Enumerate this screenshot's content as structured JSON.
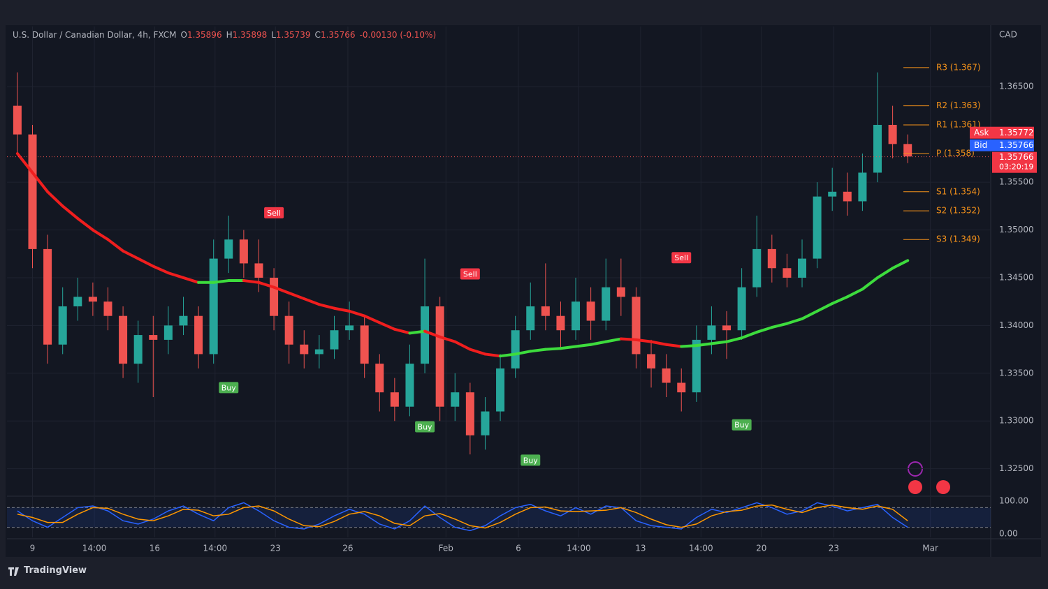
{
  "chart_data": {
    "type": "candlestick",
    "header": {
      "symbol": "U.S. Dollar / Canadian Dollar, 4h, FXCM",
      "ohlc": [
        {
          "key": "O",
          "value": 1.35896
        },
        {
          "key": "H",
          "value": 1.35898
        },
        {
          "key": "L",
          "value": 1.35739
        },
        {
          "key": "C",
          "value": 1.35766
        }
      ],
      "change": "-0.00130 (-0.10%)"
    },
    "currency": "CAD",
    "xlim": [
      -0.69,
      64.5
    ],
    "xticks": [
      {
        "value": 1.0,
        "label": "9"
      },
      {
        "value": 5.1,
        "label": "14:00"
      },
      {
        "value": 9.1,
        "label": "16"
      },
      {
        "value": 13.1,
        "label": "14:00"
      },
      {
        "value": 17.1,
        "label": "23"
      },
      {
        "value": 21.9,
        "label": "26"
      },
      {
        "value": 28.4,
        "label": "Feb"
      },
      {
        "value": 33.2,
        "label": "6"
      },
      {
        "value": 37.2,
        "label": "14:00"
      },
      {
        "value": 41.3,
        "label": "13"
      },
      {
        "value": 45.3,
        "label": "14:00"
      },
      {
        "value": 49.3,
        "label": "20"
      },
      {
        "value": 54.1,
        "label": "23"
      },
      {
        "value": 60.5,
        "label": "Mar"
      }
    ],
    "ylim": [
      1.3222,
      1.3713
    ],
    "yticks": [
      {
        "value": 1.325,
        "label": "1.32500"
      },
      {
        "value": 1.33,
        "label": "1.33000"
      },
      {
        "value": 1.335,
        "label": "1.33500"
      },
      {
        "value": 1.34,
        "label": "1.34000"
      },
      {
        "value": 1.345,
        "label": "1.34500"
      },
      {
        "value": 1.35,
        "label": "1.35000"
      },
      {
        "value": 1.355,
        "label": "1.35500"
      },
      {
        "value": 1.365,
        "label": "1.36500"
      }
    ],
    "grid": true,
    "up_color": "#26a69a",
    "down_color": "#ef5350",
    "open": [
      1.363,
      1.36,
      1.348,
      1.338,
      1.342,
      1.343,
      1.3425,
      1.341,
      1.336,
      1.339,
      1.3385,
      1.34,
      1.341,
      1.337,
      1.347,
      1.349,
      1.3465,
      1.345,
      1.341,
      1.338,
      1.337,
      1.3375,
      1.3395,
      1.34,
      1.336,
      1.333,
      1.3315,
      1.336,
      1.342,
      1.3315,
      1.333,
      1.3285,
      1.331,
      1.3355,
      1.3395,
      1.342,
      1.341,
      1.3395,
      1.3425,
      1.3405,
      1.344,
      1.343,
      1.337,
      1.3355,
      1.334,
      1.333,
      1.3385,
      1.34,
      1.3395,
      1.344,
      1.348,
      1.346,
      1.345,
      1.347,
      1.3535,
      1.354,
      1.353,
      1.356,
      1.361,
      1.359
    ],
    "high": [
      1.3665,
      1.361,
      1.3495,
      1.344,
      1.345,
      1.3445,
      1.344,
      1.342,
      1.3405,
      1.341,
      1.342,
      1.343,
      1.342,
      1.349,
      1.3515,
      1.35,
      1.349,
      1.346,
      1.3425,
      1.3395,
      1.339,
      1.341,
      1.3425,
      1.341,
      1.337,
      1.3345,
      1.338,
      1.347,
      1.343,
      1.335,
      1.334,
      1.3325,
      1.337,
      1.341,
      1.3445,
      1.3465,
      1.3425,
      1.345,
      1.344,
      1.347,
      1.347,
      1.344,
      1.3385,
      1.337,
      1.3355,
      1.34,
      1.342,
      1.3415,
      1.346,
      1.3515,
      1.3495,
      1.3475,
      1.349,
      1.355,
      1.3565,
      1.356,
      1.358,
      1.3665,
      1.363,
      1.36
    ],
    "low": [
      1.358,
      1.346,
      1.336,
      1.337,
      1.3405,
      1.341,
      1.3395,
      1.3345,
      1.334,
      1.3325,
      1.337,
      1.339,
      1.3355,
      1.336,
      1.3455,
      1.345,
      1.3435,
      1.3395,
      1.336,
      1.3355,
      1.3355,
      1.3365,
      1.3385,
      1.3345,
      1.331,
      1.33,
      1.3305,
      1.335,
      1.33,
      1.33,
      1.3265,
      1.327,
      1.33,
      1.3345,
      1.3385,
      1.3395,
      1.3375,
      1.3385,
      1.3385,
      1.3395,
      1.341,
      1.3355,
      1.3335,
      1.3325,
      1.331,
      1.332,
      1.337,
      1.3365,
      1.3385,
      1.343,
      1.3445,
      1.344,
      1.344,
      1.346,
      1.352,
      1.3515,
      1.352,
      1.355,
      1.3575,
      1.357
    ],
    "close": [
      1.36,
      1.348,
      1.338,
      1.342,
      1.343,
      1.3425,
      1.341,
      1.336,
      1.339,
      1.3385,
      1.34,
      1.341,
      1.337,
      1.347,
      1.349,
      1.3465,
      1.345,
      1.341,
      1.338,
      1.337,
      1.3375,
      1.3395,
      1.34,
      1.336,
      1.333,
      1.3315,
      1.336,
      1.342,
      1.3315,
      1.333,
      1.3285,
      1.331,
      1.3355,
      1.3395,
      1.342,
      1.341,
      1.3395,
      1.3425,
      1.3405,
      1.344,
      1.343,
      1.337,
      1.3355,
      1.334,
      1.333,
      1.3385,
      1.34,
      1.3395,
      1.344,
      1.348,
      1.346,
      1.345,
      1.347,
      1.3535,
      1.354,
      1.353,
      1.356,
      1.361,
      1.359,
      1.3577
    ],
    "moving_average": {
      "values": [
        1.358,
        1.356,
        1.354,
        1.3525,
        1.3512,
        1.35,
        1.349,
        1.3478,
        1.347,
        1.3462,
        1.3455,
        1.345,
        1.3445,
        1.3445,
        1.3447,
        1.3447,
        1.3445,
        1.344,
        1.3434,
        1.3428,
        1.3422,
        1.3418,
        1.3415,
        1.341,
        1.3403,
        1.3396,
        1.3392,
        1.3394,
        1.3388,
        1.3383,
        1.3375,
        1.337,
        1.3368,
        1.337,
        1.3373,
        1.3375,
        1.3376,
        1.3378,
        1.338,
        1.3383,
        1.3386,
        1.3385,
        1.3383,
        1.338,
        1.3378,
        1.3379,
        1.3381,
        1.3383,
        1.3387,
        1.3393,
        1.3398,
        1.3402,
        1.3407,
        1.3415,
        1.3423,
        1.343,
        1.3438,
        1.345,
        1.346,
        1.3468
      ],
      "up_color": "#3ddc3d",
      "down_color": "#f01e1e"
    },
    "signals": [
      {
        "index": 14,
        "label": "Buy",
        "price": 1.3335
      },
      {
        "index": 17,
        "label": "Sell",
        "price": 1.3518
      },
      {
        "index": 27,
        "label": "Buy",
        "price": 1.3294
      },
      {
        "index": 30,
        "label": "Sell",
        "price": 1.3454
      },
      {
        "index": 34,
        "label": "Buy",
        "price": 1.3259
      },
      {
        "index": 44,
        "label": "Sell",
        "price": 1.3471
      },
      {
        "index": 48,
        "label": "Buy",
        "price": 1.3296
      }
    ],
    "buy_color": "#4caf50",
    "sell_color": "#f23645",
    "pivot_color": "#f7931a",
    "pivots": [
      {
        "label": "R3 (1.367)",
        "value": 1.367
      },
      {
        "label": "R2 (1.363)",
        "value": 1.363
      },
      {
        "label": "R1 (1.361)",
        "value": 1.361
      },
      {
        "label": "P (1.358)",
        "value": 1.358
      },
      {
        "label": "S1 (1.354)",
        "value": 1.354
      },
      {
        "label": "S2 (1.352)",
        "value": 1.352
      },
      {
        "label": "S3 (1.349)",
        "value": 1.349
      }
    ],
    "last_price": 1.35766,
    "price_tags": {
      "ask_label": "Ask",
      "ask": 1.35772,
      "bid_label": "Bid",
      "bid": 1.35766,
      "last": 1.35766,
      "countdown": "03:20:19"
    },
    "oscillator": {
      "ylim": [
        -10.6,
        112.8
      ],
      "yticks": [
        {
          "value": 100,
          "label": "100.00"
        },
        {
          "value": 0,
          "label": "0.00"
        }
      ],
      "band_levels": [
        80,
        20
      ],
      "series": [
        {
          "color": "#2962ff",
          "values": [
            70,
            40,
            20,
            50,
            80,
            85,
            70,
            40,
            30,
            45,
            70,
            85,
            60,
            40,
            80,
            95,
            70,
            40,
            20,
            15,
            30,
            55,
            75,
            60,
            30,
            15,
            40,
            85,
            50,
            20,
            10,
            25,
            55,
            80,
            90,
            70,
            55,
            80,
            60,
            85,
            80,
            40,
            25,
            20,
            15,
            50,
            75,
            65,
            80,
            95,
            80,
            60,
            70,
            95,
            85,
            70,
            80,
            90,
            50,
            20
          ]
        },
        {
          "color": "#ff9800",
          "values": [
            60,
            50,
            35,
            35,
            60,
            80,
            78,
            60,
            45,
            40,
            55,
            75,
            72,
            55,
            60,
            80,
            85,
            70,
            45,
            25,
            22,
            38,
            60,
            68,
            55,
            32,
            25,
            55,
            62,
            45,
            25,
            18,
            35,
            60,
            80,
            82,
            70,
            68,
            70,
            72,
            80,
            65,
            45,
            28,
            20,
            30,
            55,
            68,
            72,
            85,
            88,
            75,
            65,
            80,
            88,
            80,
            75,
            85,
            75,
            40
          ]
        }
      ]
    }
  },
  "footer": {
    "brand": "TradingView"
  }
}
